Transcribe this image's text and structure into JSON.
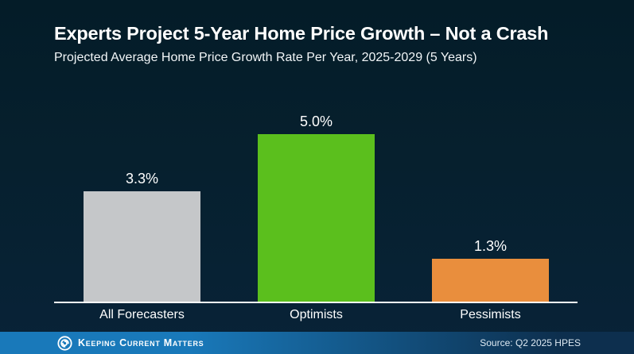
{
  "header": {
    "title": "Experts Project 5-Year Home Price Growth – Not a Crash",
    "subtitle": "Projected Average Home Price Growth Rate Per Year, 2025-2029 (5 Years)"
  },
  "chart_data": {
    "type": "bar",
    "title": "Experts Project 5-Year Home Price Growth – Not a Crash",
    "subtitle": "Projected Average Home Price Growth Rate Per Year, 2025-2029 (5 Years)",
    "categories": [
      "All Forecasters",
      "Optimists",
      "Pessimists"
    ],
    "values": [
      3.3,
      5.0,
      1.3
    ],
    "value_labels": [
      "3.3%",
      "5.0%",
      "1.3%"
    ],
    "bar_colors": [
      "#c5c7c9",
      "#5bbf1d",
      "#e98e3d"
    ],
    "xlabel": "",
    "ylabel": "",
    "ylim": [
      0,
      5.3
    ],
    "grid": false,
    "legend": false,
    "axis_color": "#ffffff",
    "label_color": "#ffffff"
  },
  "footer": {
    "brand": "Keeping Current Matters",
    "source": "Source: Q2 2025 HPES",
    "accent_color": "#1979ba"
  },
  "colors": {
    "background_top": "#041c28",
    "background_bottom": "#082338",
    "text": "#ffffff"
  }
}
